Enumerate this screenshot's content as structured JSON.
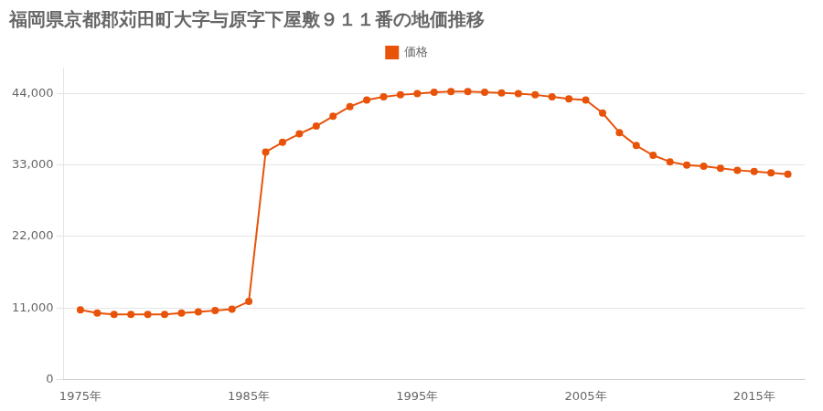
{
  "chart_data": {
    "type": "line",
    "title": "福岡県京都郡苅田町大字与原字下屋敷９１１番の地価推移",
    "x": [
      1975,
      1976,
      1977,
      1978,
      1979,
      1980,
      1981,
      1982,
      1983,
      1984,
      1985,
      1986,
      1987,
      1988,
      1989,
      1990,
      1991,
      1992,
      1993,
      1994,
      1995,
      1996,
      1997,
      1998,
      1999,
      2000,
      2001,
      2002,
      2003,
      2004,
      2005,
      2006,
      2007,
      2008,
      2009,
      2010,
      2011,
      2012,
      2013,
      2014,
      2015,
      2016,
      2017
    ],
    "series": [
      {
        "name": "価格",
        "color": "#e8530a",
        "marker": "circle",
        "values": [
          10700,
          10200,
          10000,
          10000,
          10000,
          10000,
          10200,
          10400,
          10600,
          10800,
          12000,
          35000,
          36500,
          37800,
          39000,
          40500,
          42000,
          43000,
          43500,
          43800,
          44000,
          44200,
          44300,
          44300,
          44200,
          44100,
          44000,
          43800,
          43500,
          43200,
          43000,
          41000,
          38000,
          36000,
          34500,
          33500,
          33000,
          32800,
          32500,
          32200,
          32000,
          31800,
          31600
        ]
      }
    ],
    "xlim": [
      1974,
      2018
    ],
    "xticks": [
      {
        "value": 1975,
        "label": "1975年"
      },
      {
        "value": 1985,
        "label": "1985年"
      },
      {
        "value": 1995,
        "label": "1995年"
      },
      {
        "value": 2005,
        "label": "2005年"
      },
      {
        "value": 2015,
        "label": "2015年"
      }
    ],
    "ylim": [
      0,
      48000
    ],
    "yticks": [
      0,
      {
        "value": 11000,
        "label": "11,000"
      },
      {
        "value": 22000,
        "label": "22,000"
      },
      {
        "value": 33000,
        "label": "33,000"
      },
      {
        "value": 44000,
        "label": "44,000"
      }
    ],
    "grid": "y",
    "legend": "top"
  }
}
